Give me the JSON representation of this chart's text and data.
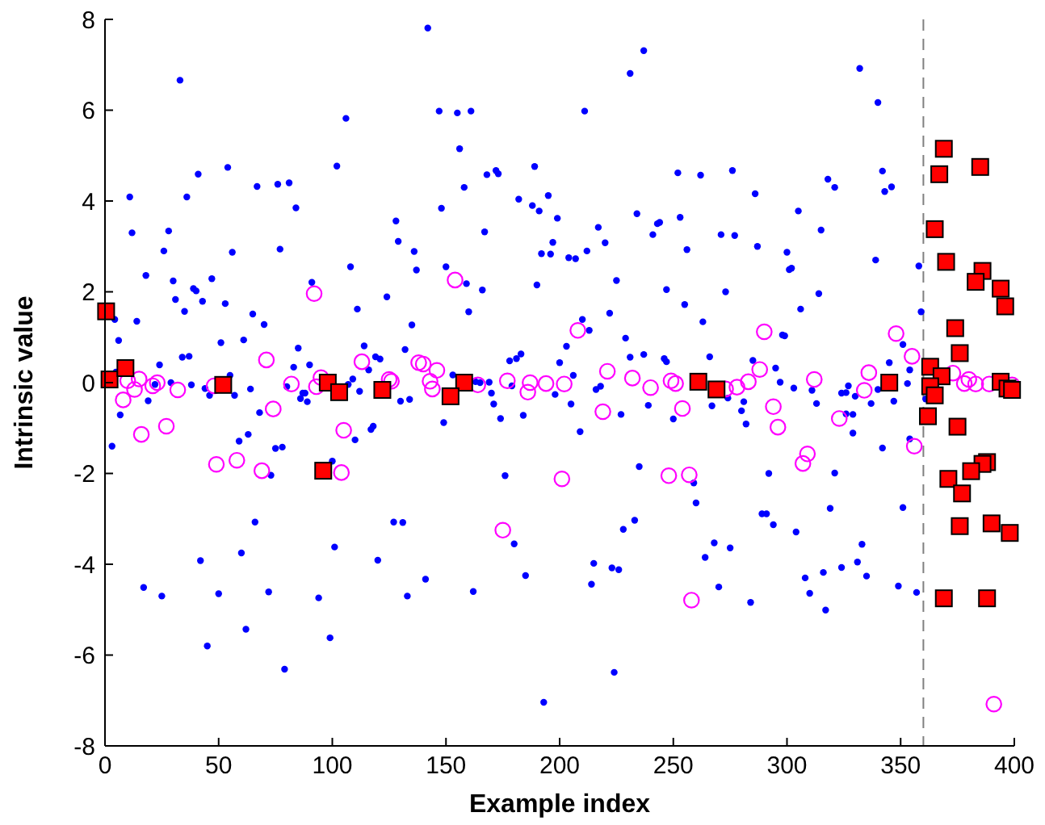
{
  "chart_data": {
    "type": "scatter",
    "xlabel": "Example index",
    "ylabel": "Intrinsic value",
    "xlim": [
      0,
      400
    ],
    "ylim": [
      -8,
      8
    ],
    "xticks": [
      0,
      50,
      100,
      150,
      200,
      250,
      300,
      350,
      400
    ],
    "yticks": [
      -8,
      -6,
      -4,
      -2,
      0,
      2,
      4,
      6,
      8
    ],
    "grid": false,
    "ref_lines": [
      {
        "axis": "x",
        "value": 360,
        "color": "#808080",
        "line_style": "dashed"
      }
    ],
    "series": [
      {
        "color": "#0000ff",
        "marker": "circle",
        "x": [
          33,
          106,
          41,
          54,
          10.9,
          36,
          66.9,
          76,
          81,
          102,
          84,
          11.9,
          28,
          25.9,
          77,
          56,
          128,
          129,
          136,
          137,
          108,
          18,
          30,
          91,
          47,
          38.9,
          40.1,
          31,
          42.9,
          52.9,
          124,
          35,
          111,
          4.3,
          14,
          65,
          70,
          6,
          135,
          51,
          61,
          85,
          132,
          114,
          34,
          37,
          119,
          121,
          24,
          90,
          83,
          116,
          55,
          4.8,
          22,
          29,
          38,
          80,
          109,
          107,
          112,
          44,
          46,
          57,
          64,
          87,
          88,
          86,
          89,
          19,
          130,
          134,
          6.7,
          68,
          110,
          118,
          117,
          3.1,
          59,
          63,
          75,
          78,
          73,
          100,
          66,
          127,
          131,
          101,
          120,
          42,
          60,
          17,
          25,
          50,
          72,
          94,
          133,
          62,
          45,
          99,
          79,
          142,
          237,
          231,
          147,
          155,
          161,
          211,
          156,
          168,
          172,
          173,
          189,
          252,
          262,
          158,
          182,
          188,
          191,
          195,
          148,
          199,
          234,
          253,
          243,
          244,
          241,
          217,
          220,
          167,
          271,
          197,
          192,
          196,
          204,
          207,
          212,
          256,
          150,
          159,
          166,
          190,
          225,
          247,
          273,
          160,
          222,
          255,
          263,
          210,
          213,
          229,
          203,
          178,
          181,
          183,
          200,
          231,
          237,
          246,
          247,
          266,
          153,
          163,
          165,
          169,
          170,
          171,
          179,
          206,
          198,
          205,
          216,
          218,
          174,
          184,
          209,
          227,
          239,
          250,
          267,
          149,
          176,
          235,
          259,
          260,
          180,
          228,
          233,
          268,
          264,
          185,
          215,
          214,
          223,
          226,
          270,
          141,
          162,
          224,
          193,
          332,
          340,
          276,
          286,
          318,
          321,
          342,
          343,
          346,
          305,
          277,
          287,
          315,
          300,
          301,
          302,
          339,
          358,
          314,
          306,
          359,
          298,
          299,
          285,
          295,
          297,
          303,
          311,
          313,
          324,
          326,
          327,
          330,
          337,
          340,
          347,
          345,
          351,
          354,
          353,
          361,
          274,
          280,
          281,
          282,
          326,
          329,
          329,
          342,
          354,
          292,
          321,
          289,
          291,
          294,
          304,
          319,
          351,
          275,
          333,
          284,
          308,
          310,
          316,
          324,
          331,
          335,
          317,
          349,
          357
        ],
        "values": [
          6.66,
          5.82,
          4.59,
          4.74,
          4.09,
          4.09,
          4.32,
          4.37,
          4.4,
          4.77,
          3.85,
          3.3,
          3.34,
          2.9,
          2.94,
          2.87,
          3.56,
          3.11,
          2.89,
          2.48,
          2.55,
          2.36,
          2.24,
          2.21,
          2.29,
          2.07,
          2.02,
          1.83,
          1.79,
          1.74,
          1.89,
          1.57,
          1.62,
          1.39,
          1.35,
          1.51,
          1.28,
          0.93,
          1.27,
          0.88,
          0.94,
          0.76,
          0.73,
          0.81,
          0.56,
          0.58,
          0.57,
          0.52,
          0.39,
          0.39,
          0.34,
          0.28,
          0.16,
          0.23,
          -0.04,
          0,
          -0.05,
          -0.09,
          0.08,
          -0.04,
          -0.19,
          -0.13,
          -0.28,
          -0.28,
          -0.14,
          -0.23,
          -0.23,
          -0.35,
          -0.42,
          -0.4,
          -0.41,
          -0.37,
          -0.71,
          -0.66,
          -1.26,
          -0.96,
          -1.03,
          -1.4,
          -1.29,
          -1.14,
          -1.45,
          -1.42,
          -2.04,
          -1.73,
          -3.07,
          -3.07,
          -3.08,
          -3.62,
          -3.91,
          -3.92,
          -3.75,
          -4.51,
          -4.7,
          -4.65,
          -4.61,
          -4.74,
          -4.7,
          -5.43,
          -5.8,
          -5.62,
          -6.31,
          7.81,
          7.31,
          6.81,
          5.98,
          5.94,
          5.98,
          5.98,
          5.15,
          4.58,
          4.67,
          4.6,
          4.76,
          4.62,
          4.57,
          4.3,
          4.04,
          3.9,
          3.78,
          4.12,
          3.84,
          3.62,
          3.72,
          3.64,
          3.5,
          3.53,
          3.26,
          3.42,
          3.08,
          3.32,
          3.26,
          3.09,
          2.84,
          2.83,
          2.75,
          2.73,
          2.9,
          2.93,
          2.55,
          2.18,
          2.04,
          2.15,
          2.25,
          2.05,
          2,
          1.56,
          1.53,
          1.72,
          1.34,
          1.39,
          1.15,
          0.98,
          0.8,
          0.48,
          0.53,
          0.63,
          0.44,
          0.56,
          0.62,
          0.53,
          0.46,
          0.57,
          0.17,
          0.02,
          0,
          0.01,
          -0.23,
          -0.47,
          -0.07,
          0.16,
          -0.26,
          -0.47,
          -0.15,
          -0.08,
          -0.79,
          -0.72,
          -1.08,
          -0.7,
          -0.5,
          -0.8,
          -0.51,
          -0.88,
          -2.05,
          -1.85,
          -2.21,
          -2.65,
          -3.55,
          -3.23,
          -3.03,
          -3.53,
          -3.85,
          -4.25,
          -3.98,
          -4.44,
          -4.08,
          -4.12,
          -4.5,
          -4.33,
          -4.6,
          -6.38,
          -7.04,
          6.92,
          6.17,
          4.67,
          4.16,
          4.48,
          4.3,
          4.66,
          4.21,
          4.31,
          3.78,
          3.24,
          3,
          3.36,
          2.87,
          2.49,
          2.52,
          2.7,
          2.57,
          1.96,
          1.62,
          1.56,
          1.05,
          1.03,
          0.49,
          0.32,
          0.01,
          -0.12,
          -0.17,
          -0.46,
          -0.23,
          -0.22,
          -0.07,
          -0.3,
          -0.46,
          -0.15,
          -0.41,
          0.44,
          0.84,
          0.28,
          -0.02,
          -0.36,
          -0.34,
          -0.62,
          -0.42,
          -0.91,
          -0.69,
          -0.7,
          -1.11,
          -1.44,
          -1.24,
          -2,
          -1.99,
          -2.89,
          -2.89,
          -3.13,
          -3.29,
          -2.77,
          -2.75,
          -3.64,
          -3.56,
          -4.84,
          -4.3,
          -4.64,
          -4.18,
          -4.07,
          -3.95,
          -4.26,
          -5.01,
          -4.48,
          -4.62
        ]
      },
      {
        "color": "#ff00ff",
        "marker": "circle_open",
        "x": [
          92,
          71,
          113,
          138,
          10,
          15,
          13,
          8,
          21,
          23,
          32,
          48,
          82,
          93,
          95,
          125,
          126,
          74,
          105,
          16,
          27,
          49,
          58,
          69,
          104,
          154,
          208,
          140,
          146,
          143,
          144,
          164,
          177,
          187,
          186,
          194,
          202,
          221,
          232,
          240,
          249,
          251,
          254,
          219,
          201,
          248,
          257,
          175,
          258,
          290,
          348,
          355,
          336,
          288,
          283,
          278,
          273,
          312,
          334,
          294,
          296,
          323,
          356,
          309,
          307,
          373,
          378,
          380,
          383,
          389,
          399,
          391
        ],
        "values": [
          1.96,
          0.5,
          0.46,
          0.44,
          0.04,
          0.08,
          -0.15,
          -0.38,
          -0.07,
          0,
          -0.16,
          -0.07,
          -0.03,
          -0.09,
          0.11,
          0.07,
          0.03,
          -0.58,
          -1.05,
          -1.14,
          -0.96,
          -1.8,
          -1.71,
          -1.94,
          -1.98,
          2.26,
          1.15,
          0.41,
          0.27,
          0.03,
          -0.14,
          -0.05,
          0.04,
          0,
          -0.21,
          -0.02,
          -0.03,
          0.25,
          0.1,
          -0.11,
          0.04,
          -0.02,
          -0.57,
          -0.64,
          -2.12,
          -2.05,
          -2.03,
          -3.25,
          -4.79,
          1.12,
          1.08,
          0.58,
          0.22,
          0.29,
          0.02,
          -0.1,
          -0.14,
          0.07,
          -0.17,
          -0.53,
          -0.98,
          -0.79,
          -1.4,
          -1.57,
          -1.78,
          0.21,
          -0.02,
          0.07,
          -0.03,
          -0.03,
          -0.05,
          -7.08
        ]
      },
      {
        "color": "#ff0000",
        "marker": "square",
        "x": [
          0.5,
          2,
          9,
          52,
          98,
          103,
          122,
          96,
          158,
          152,
          261,
          269,
          345,
          369,
          385,
          367,
          365,
          370,
          386,
          383,
          394,
          396,
          374,
          376,
          363,
          368,
          363,
          365,
          394,
          397,
          399,
          362,
          375,
          388,
          386,
          381,
          371,
          377,
          376,
          390,
          398,
          369,
          388
        ],
        "values": [
          1.57,
          0.07,
          0.32,
          -0.05,
          0,
          -0.21,
          -0.16,
          -1.94,
          0,
          -0.3,
          0.02,
          -0.15,
          0,
          5.15,
          4.75,
          4.59,
          3.38,
          2.66,
          2.46,
          2.22,
          2.07,
          1.68,
          1.2,
          0.65,
          0.35,
          0.14,
          -0.08,
          -0.28,
          0.02,
          -0.13,
          -0.16,
          -0.74,
          -0.97,
          -1.75,
          -1.79,
          -1.95,
          -2.12,
          -2.44,
          -3.16,
          -3.1,
          -3.31,
          -4.75,
          -4.75
        ]
      }
    ]
  }
}
